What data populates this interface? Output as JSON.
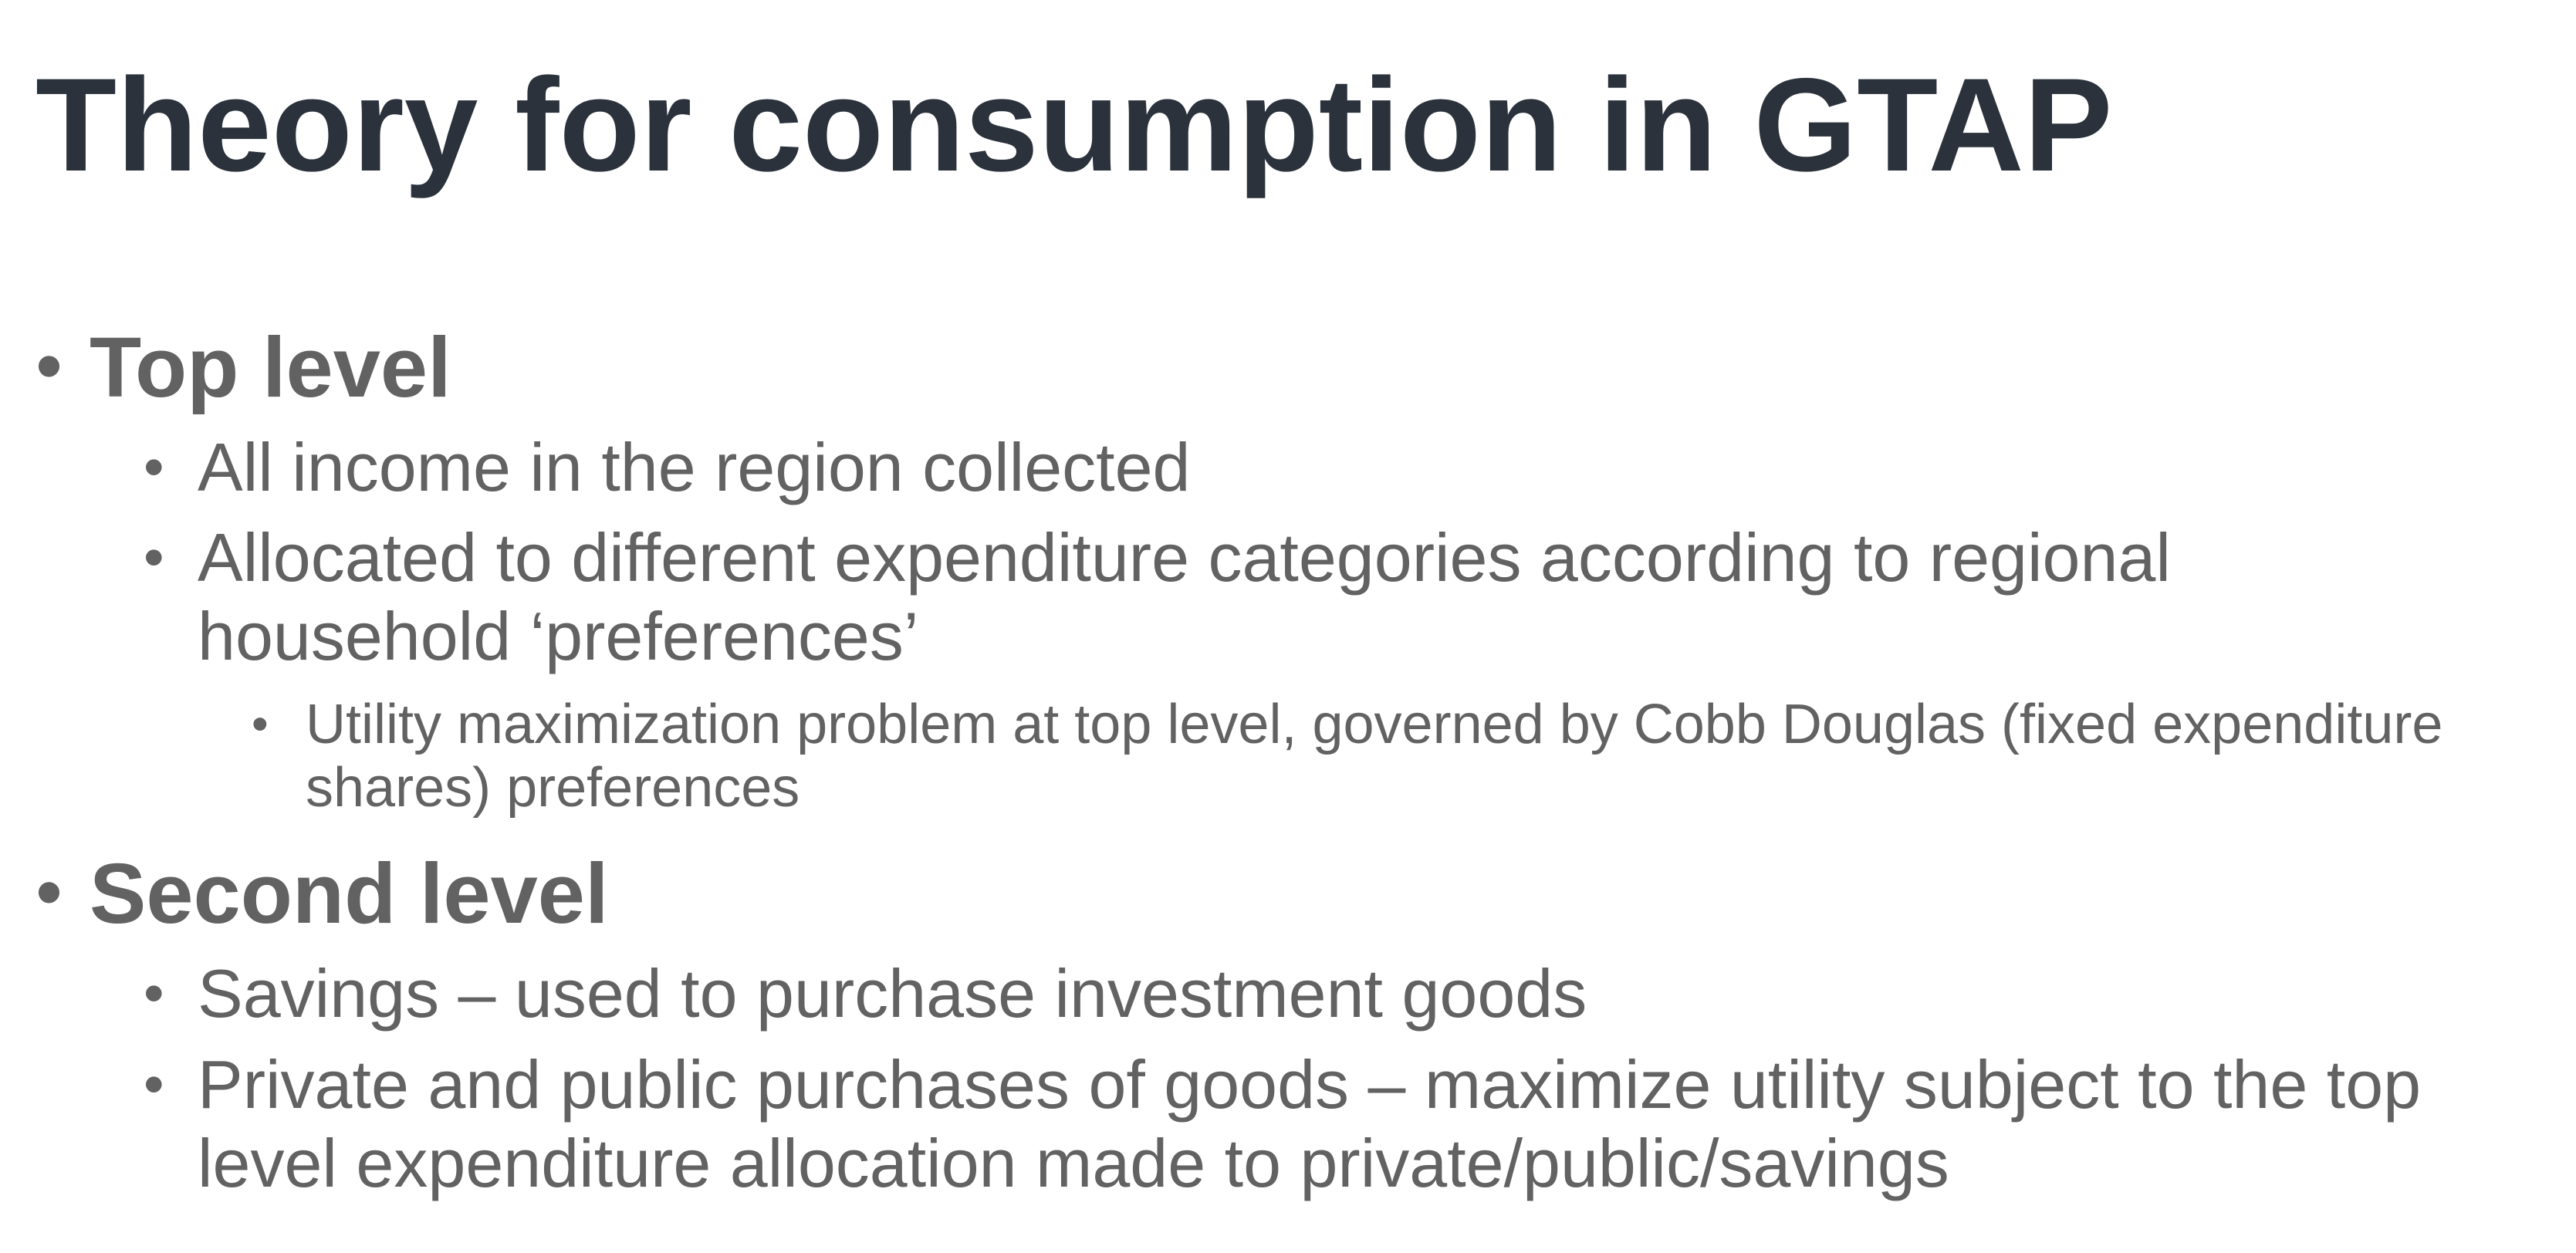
{
  "slide": {
    "title": "Theory for consumption in GTAP",
    "bullet_glyph": "•",
    "sections": [
      {
        "heading": "Top level",
        "items": [
          {
            "text": "All income in the region collected"
          },
          {
            "text": "Allocated to different expenditure categories according to regional household ‘preferences’"
          },
          {
            "text": "Utility maximization problem at top level, governed by Cobb Douglas (fixed expenditure shares) preferences"
          }
        ]
      },
      {
        "heading": "Second level",
        "items": [
          {
            "text": "Savings – used to purchase investment goods"
          },
          {
            "text": "Private and public purchases of goods – maximize utility subject to the top level expenditure allocation made to private/public/savings"
          }
        ]
      }
    ]
  }
}
